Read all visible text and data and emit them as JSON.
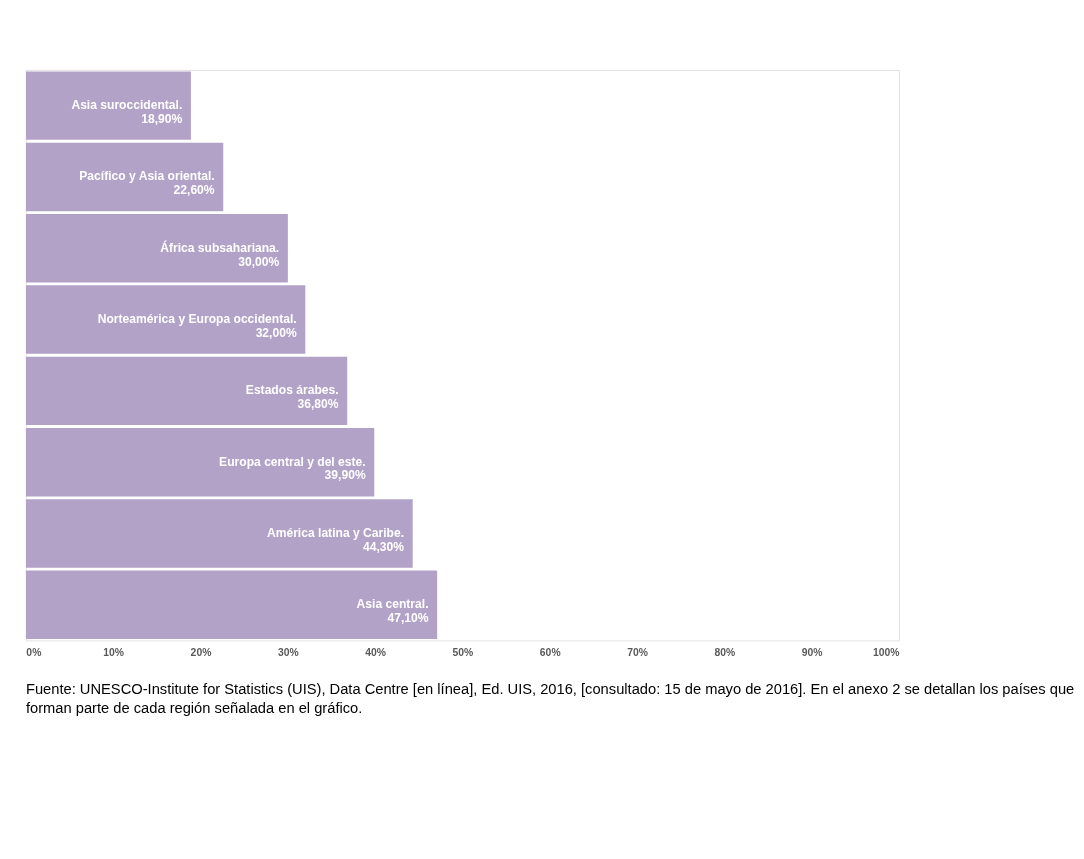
{
  "chart_data": {
    "type": "bar",
    "orientation": "horizontal",
    "categories": [
      "Asia suroccidental.",
      "Pacífico y Asia oriental.",
      "África subsahariana.",
      "Norteamérica y Europa occidental.",
      "Estados árabes.",
      "Europa central y del este.",
      "América latina y Caribe.",
      "Asia central."
    ],
    "values": [
      18.9,
      22.6,
      30.0,
      32.0,
      36.8,
      39.9,
      44.3,
      47.1
    ],
    "value_labels": [
      "18,90%",
      "22,60%",
      "30,00%",
      "32,00%",
      "36,80%",
      "39,90%",
      "44,30%",
      "47,10%"
    ],
    "color": "#b3a2c8",
    "xlim": [
      0,
      100
    ],
    "xticks": [
      {
        "value": 0,
        "label": "0%"
      },
      {
        "value": 10,
        "label": "10%"
      },
      {
        "value": 20,
        "label": "20%"
      },
      {
        "value": 30,
        "label": "30%"
      },
      {
        "value": 40,
        "label": "40%"
      },
      {
        "value": 50,
        "label": "50%"
      },
      {
        "value": 60,
        "label": "60%"
      },
      {
        "value": 70,
        "label": "70%"
      },
      {
        "value": 80,
        "label": "80%"
      },
      {
        "value": 90,
        "label": "90%"
      },
      {
        "value": 100,
        "label": "100%"
      }
    ],
    "tick_labels": "x",
    "grid": false,
    "annotations": [
      "Fuente: UNESCO-Institute for Statistics (UIS), Data Centre [en línea], Ed. UIS, 2016, [consultado: 15 de mayo de 2016]. En el anexo 2 se detallan los países que",
      "forman parte de cada región señalada en el gráfico."
    ]
  }
}
